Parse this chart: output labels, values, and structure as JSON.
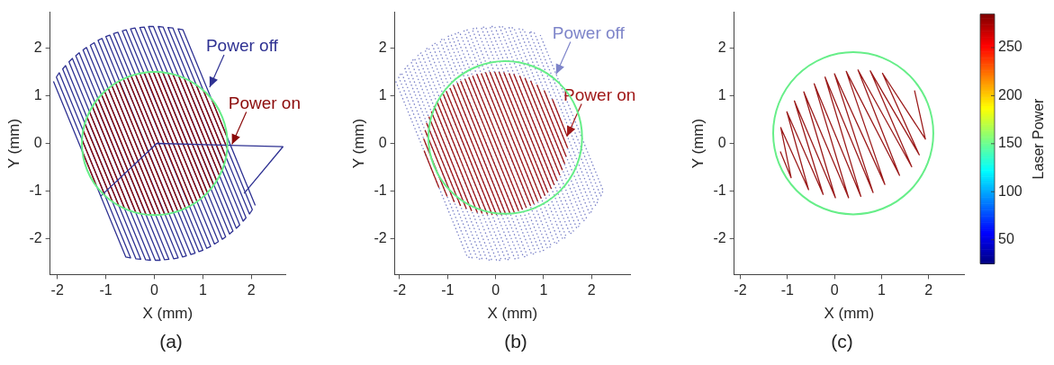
{
  "chart_data": [
    {
      "type": "line",
      "xlabel": "X (mm)",
      "ylabel": "Y (mm)",
      "xlim": [
        -2.15,
        2.7
      ],
      "ylim": [
        -2.75,
        2.75
      ],
      "xticks": [
        -2,
        -1,
        0,
        1,
        2
      ],
      "yticks": [
        -2,
        -1,
        0,
        1,
        2
      ],
      "grid": false,
      "legend": false,
      "annotations": [
        {
          "text": "Power off",
          "x": 1.14,
          "y": 1.18
        },
        {
          "text": "Power on",
          "x": 1.6,
          "y": -0.02
        },
        "(a)"
      ],
      "series": [
        {
          "color": "#2e3192",
          "x": [
            -2.08,
            -0.59,
            -0.49,
            -2.02,
            -1.96,
            -0.38,
            -0.28,
            -1.89,
            -1.83,
            -0.18,
            -0.08,
            -1.76,
            -1.69,
            0.02,
            0.12,
            -1.62,
            -1.55,
            0.21,
            0.3,
            -1.47,
            -1.4,
            0.4,
            0.49,
            -1.32,
            -1.24,
            0.58,
            0.66,
            -1.16,
            -1.08,
            0.75,
            0.84,
            -1.0,
            -0.92,
            0.92,
            1.0,
            -0.84,
            -0.75,
            1.08,
            1.16,
            -0.66,
            -0.58,
            1.24,
            1.32,
            -0.49,
            -0.4,
            1.4,
            1.47,
            -0.3,
            -0.21,
            1.55,
            1.62,
            -0.12,
            -0.02,
            1.69,
            1.76,
            0.08,
            0.18,
            1.83,
            1.89,
            0.28,
            0.38,
            1.96,
            2.02,
            0.49,
            0.59,
            2.08
          ],
          "values": [
            1.3,
            -2.38,
            -2.4,
            1.39,
            1.48,
            -2.42,
            -2.43,
            1.56,
            1.63,
            -2.44,
            -2.45,
            1.71,
            1.78,
            -2.45,
            -2.45,
            1.84,
            1.9,
            -2.44,
            -2.43,
            1.96,
            2.01,
            -2.42,
            -2.4,
            2.06,
            2.11,
            -2.38,
            -2.36,
            2.16,
            2.2,
            -2.33,
            -2.3,
            2.24,
            2.27,
            -2.27,
            -2.24,
            2.3,
            2.33,
            -2.2,
            -2.16,
            2.36,
            2.38,
            -2.11,
            -2.06,
            2.4,
            2.42,
            -2.01,
            -1.96,
            2.43,
            2.44,
            -1.9,
            -1.84,
            2.45,
            2.45,
            -1.78,
            -1.71,
            2.45,
            2.44,
            -1.63,
            -1.56,
            2.43,
            2.42,
            -1.48,
            -1.39,
            2.4,
            2.38,
            -1.3
          ]
        },
        {
          "color": "#8b0a0a",
          "x": [
            -1.49,
            -1.18,
            null,
            -1.5,
            -1.01,
            null,
            -1.47,
            -0.86,
            null,
            -1.44,
            -0.73,
            null,
            -1.39,
            -0.61,
            null,
            -1.34,
            -0.5,
            null,
            -1.28,
            -0.38,
            null,
            -1.22,
            -0.28,
            null,
            -1.16,
            -0.17,
            null,
            -1.09,
            -0.07,
            null,
            -1.03,
            0.02,
            null,
            -0.95,
            0.12,
            null,
            -0.88,
            0.21,
            null,
            -0.8,
            0.3,
            null,
            -0.73,
            0.39,
            null,
            -0.64,
            0.48,
            null,
            -0.56,
            0.56,
            null,
            -0.48,
            0.64,
            null,
            -0.39,
            0.73,
            null,
            -0.3,
            0.8,
            null,
            -0.21,
            0.88,
            null,
            -0.12,
            0.95,
            null,
            -0.02,
            1.03,
            null,
            0.07,
            1.09,
            null,
            0.17,
            1.16,
            null,
            0.28,
            1.22,
            null,
            0.38,
            1.28,
            null,
            0.5,
            1.34,
            null,
            0.61,
            1.39,
            null,
            0.73,
            1.44,
            null,
            0.86,
            1.47,
            null,
            1.01,
            1.5,
            null,
            1.18,
            1.49
          ],
          "values": [
            -0.15,
            -0.93,
            null,
            0.1,
            -1.11,
            null,
            0.28,
            -1.23,
            null,
            0.43,
            -1.31,
            null,
            0.56,
            -1.37,
            null,
            0.67,
            -1.42,
            null,
            0.78,
            -1.45,
            null,
            0.87,
            -1.47,
            null,
            0.95,
            -1.49,
            null,
            1.03,
            -1.5,
            null,
            1.1,
            -1.5,
            null,
            1.16,
            -1.5,
            null,
            1.22,
            -1.49,
            null,
            1.27,
            -1.47,
            null,
            1.31,
            -1.45,
            null,
            1.35,
            -1.42,
            null,
            1.39,
            -1.39,
            null,
            1.42,
            -1.35,
            null,
            1.45,
            -1.31,
            null,
            1.47,
            -1.27,
            null,
            1.49,
            -1.22,
            null,
            1.5,
            -1.16,
            null,
            1.5,
            -1.1,
            null,
            1.5,
            -1.03,
            null,
            1.49,
            -0.95,
            null,
            1.47,
            -0.87,
            null,
            1.45,
            -0.78,
            null,
            1.42,
            -0.67,
            null,
            1.37,
            -0.56,
            null,
            1.31,
            -0.43,
            null,
            1.23,
            -0.28,
            null,
            1.11,
            -0.1,
            null,
            0.93,
            0.15
          ]
        },
        {
          "color": "#2e3192",
          "x": [
            1.85,
            2.65,
            0.05,
            -1.1
          ],
          "values": [
            -1.05,
            -0.07,
            0.0,
            -1.1
          ]
        }
      ]
    },
    {
      "type": "line",
      "xlabel": "X (mm)",
      "ylabel": "Y (mm)",
      "xlim": [
        -2.1,
        2.8
      ],
      "ylim": [
        -2.75,
        2.75
      ],
      "xticks": [
        -2,
        -1,
        0,
        1,
        2
      ],
      "yticks": [
        -2,
        -1,
        0,
        1,
        2
      ],
      "grid": false,
      "legend": false,
      "annotations": [
        {
          "text": "Power off",
          "x": 1.26,
          "y": 1.45
        },
        {
          "text": "Power on",
          "x": 1.49,
          "y": 0.15
        },
        "(b)"
      ],
      "series": [
        {
          "color": "#7d84c9",
          "line_style": "dotted",
          "x": [
            -2.08,
            -0.59,
            -0.49,
            -2.02,
            -1.96,
            -0.38,
            -0.28,
            -1.89,
            -1.83,
            -0.18,
            -0.08,
            -1.76,
            -1.69,
            0.02,
            0.12,
            -1.62,
            -1.55,
            0.21,
            0.3,
            -1.47,
            -1.4,
            0.4,
            0.49,
            -1.32,
            -1.24,
            0.58,
            0.66,
            -1.16,
            -1.08,
            0.75,
            0.84,
            -1.0,
            -0.92,
            0.92,
            1.0,
            -0.84,
            -0.75,
            1.08,
            1.16,
            -0.66,
            -0.58,
            1.24,
            1.32,
            -0.49,
            -0.4,
            1.4,
            1.47,
            -0.3,
            -0.21,
            1.55,
            1.62,
            -0.12,
            -0.02,
            1.69,
            1.76,
            0.08,
            0.18,
            1.83,
            1.89,
            0.28,
            0.38,
            1.96,
            2.02,
            0.49,
            0.59,
            2.08,
            2.14,
            0.7,
            0.81,
            2.19,
            2.24,
            0.93
          ],
          "values": [
            1.3,
            -2.38,
            -2.4,
            1.39,
            1.48,
            -2.42,
            -2.43,
            1.56,
            1.63,
            -2.44,
            -2.45,
            1.71,
            1.78,
            -2.45,
            -2.45,
            1.84,
            1.9,
            -2.44,
            -2.43,
            1.96,
            2.01,
            -2.42,
            -2.4,
            2.06,
            2.11,
            -2.38,
            -2.36,
            2.16,
            2.2,
            -2.33,
            -2.3,
            2.24,
            2.27,
            -2.27,
            -2.24,
            2.3,
            2.33,
            -2.2,
            -2.16,
            2.36,
            2.38,
            -2.11,
            -2.06,
            2.4,
            2.42,
            -2.01,
            -1.96,
            2.43,
            2.44,
            -1.9,
            -1.84,
            2.45,
            2.45,
            -1.78,
            -1.71,
            2.45,
            2.44,
            -1.63,
            -1.56,
            2.43,
            2.42,
            -1.48,
            -1.39,
            2.4,
            2.38,
            -1.3,
            -1.2,
            2.35,
            2.31,
            -1.1,
            -0.99,
            2.27
          ]
        },
        {
          "color": "#a01818",
          "x": [
            -1.49,
            -1.18,
            null,
            -1.5,
            -1.01,
            null,
            -1.47,
            -0.86,
            null,
            -1.44,
            -0.73,
            null,
            -1.39,
            -0.61,
            null,
            -1.34,
            -0.5,
            null,
            -1.28,
            -0.38,
            null,
            -1.22,
            -0.28,
            null,
            -1.16,
            -0.17,
            null,
            -1.09,
            -0.07,
            null,
            -1.03,
            0.02,
            null,
            -0.95,
            0.12,
            null,
            -0.88,
            0.21,
            null,
            -0.8,
            0.3,
            null,
            -0.73,
            0.39,
            null,
            -0.64,
            0.48,
            null,
            -0.56,
            0.56,
            null,
            -0.48,
            0.64,
            null,
            -0.39,
            0.73,
            null,
            -0.3,
            0.8,
            null,
            -0.21,
            0.88,
            null,
            -0.12,
            0.95,
            null,
            -0.02,
            1.03,
            null,
            0.07,
            1.09,
            null,
            0.17,
            1.16,
            null,
            0.28,
            1.22,
            null,
            0.38,
            1.28,
            null,
            0.5,
            1.34,
            null,
            0.61,
            1.39,
            null,
            0.73,
            1.44,
            null,
            0.86,
            1.47,
            null,
            1.01,
            1.5,
            null,
            1.18,
            1.49
          ],
          "values": [
            -0.15,
            -0.93,
            null,
            0.1,
            -1.11,
            null,
            0.28,
            -1.23,
            null,
            0.43,
            -1.31,
            null,
            0.56,
            -1.37,
            null,
            0.67,
            -1.42,
            null,
            0.78,
            -1.45,
            null,
            0.87,
            -1.47,
            null,
            0.95,
            -1.49,
            null,
            1.03,
            -1.5,
            null,
            1.1,
            -1.5,
            null,
            1.16,
            -1.5,
            null,
            1.22,
            -1.49,
            null,
            1.27,
            -1.47,
            null,
            1.31,
            -1.45,
            null,
            1.35,
            -1.42,
            null,
            1.39,
            -1.39,
            null,
            1.42,
            -1.35,
            null,
            1.45,
            -1.31,
            null,
            1.47,
            -1.27,
            null,
            1.49,
            -1.22,
            null,
            1.5,
            -1.16,
            null,
            1.5,
            -1.1,
            null,
            1.5,
            -1.03,
            null,
            1.49,
            -0.95,
            null,
            1.47,
            -0.87,
            null,
            1.45,
            -0.78,
            null,
            1.42,
            -0.67,
            null,
            1.37,
            -0.56,
            null,
            1.31,
            -0.43,
            null,
            1.23,
            -0.28,
            null,
            1.11,
            -0.1,
            null,
            0.93,
            0.15
          ]
        }
      ]
    },
    {
      "type": "line",
      "xlabel": "X (mm)",
      "ylabel": "Y (mm)",
      "xlim": [
        -2.13,
        2.75
      ],
      "ylim": [
        -2.75,
        2.75
      ],
      "xticks": [
        -2,
        -1,
        0,
        1,
        2
      ],
      "yticks": [
        -2,
        -1,
        0,
        1,
        2
      ],
      "grid": false,
      "legend": false,
      "clabel": "Laser Power",
      "clim": [
        25,
        285
      ],
      "cticks": [
        50,
        100,
        150,
        200,
        250
      ],
      "annotations": [
        "(c)"
      ],
      "series": [
        {
          "color": "#9b1b1b",
          "x": [
            -1.15,
            -0.92,
            -1.14,
            -0.55,
            -1.01,
            -0.24,
            -0.85,
            0.02,
            -0.65,
            0.3,
            -0.43,
            0.56,
            -0.2,
            0.82,
            0.0,
            1.07,
            0.25,
            1.38,
            0.5,
            1.64,
            0.76,
            1.8,
            1.02,
            1.93,
            1.7
          ],
          "values": [
            -0.17,
            -0.72,
            0.33,
            -0.97,
            0.66,
            -1.07,
            0.89,
            -1.14,
            1.08,
            -1.14,
            1.25,
            -1.11,
            1.39,
            -1.03,
            1.46,
            -0.86,
            1.51,
            -0.67,
            1.54,
            -0.49,
            1.52,
            -0.24,
            1.47,
            0.09,
            1.11
          ]
        }
      ]
    }
  ]
}
